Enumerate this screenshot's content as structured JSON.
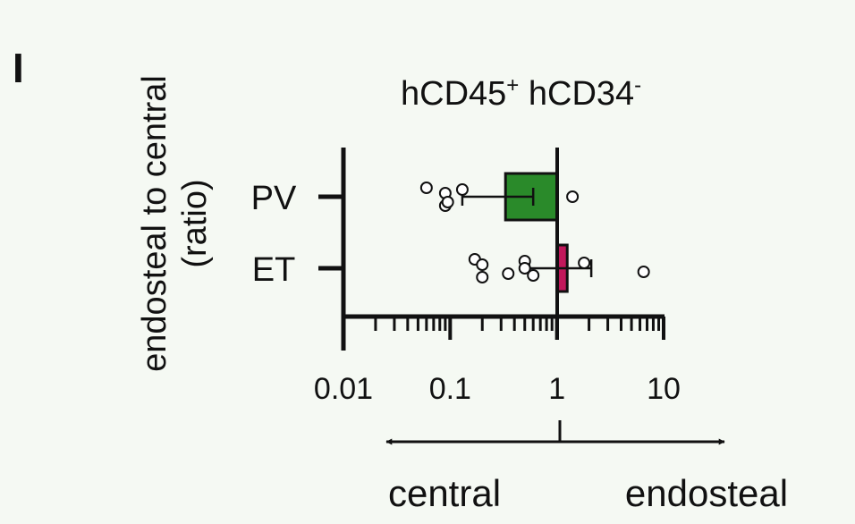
{
  "panel_label": "I",
  "chart_data": {
    "type": "bar",
    "orientation": "horizontal",
    "title": "hCD45",
    "title_sup1": "+",
    "title_mid": " hCD34",
    "title_sup2": "-",
    "ylabel_line1": "endosteal to central",
    "ylabel_line2": "(ratio)",
    "xscale": "log",
    "xlim": [
      0.01,
      10
    ],
    "xticks": [
      0.01,
      0.1,
      1,
      10
    ],
    "xtick_labels": [
      "0.01",
      "0.1",
      "1",
      "10"
    ],
    "reference": 1,
    "categories": [
      "PV",
      "ET"
    ],
    "colors": [
      "#2a8a2a",
      "#c2185b"
    ],
    "bars": [
      {
        "category": "PV",
        "value": 0.33,
        "error_low": 0.13,
        "error_high": 0.6
      },
      {
        "category": "ET",
        "value": 1.25,
        "error_low": 0.55,
        "error_high": 2.1
      }
    ],
    "points": [
      {
        "category": "PV",
        "values": [
          0.06,
          0.09,
          0.09,
          0.095,
          0.13,
          1.4
        ]
      },
      {
        "category": "ET",
        "values": [
          0.17,
          0.2,
          0.2,
          0.35,
          0.5,
          0.5,
          0.6,
          1.8,
          6.5
        ]
      }
    ],
    "direction_left": "central",
    "direction_right": "endosteal"
  }
}
